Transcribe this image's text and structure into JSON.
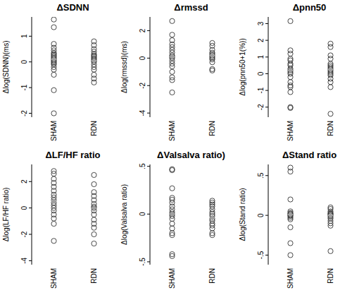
{
  "chart_data": [
    {
      "type": "scatter",
      "title": "ΔSDNN",
      "y_label": "Δlog(SDNN)(ms)",
      "categories": [
        "SHAM",
        "RDN"
      ],
      "values": [
        [
          1.65,
          1.35,
          0.7,
          0.55,
          0.45,
          0.35,
          0.3,
          0.25,
          0.2,
          0.15,
          0.1,
          0.05,
          0,
          -0.05,
          -0.1,
          -0.2,
          -0.3,
          -0.5,
          -1.1,
          -2.0
        ],
        [
          0.8,
          0.65,
          0.5,
          0.4,
          0.3,
          0.25,
          0.2,
          0.15,
          0.1,
          0.05,
          0,
          -0.1,
          -0.2,
          -0.3,
          -0.5,
          -0.65,
          -0.8
        ]
      ],
      "medians": [
        0.1,
        0.05
      ],
      "ylim": [
        -2.15,
        1.75
      ],
      "yticks": [
        -2,
        -1,
        0,
        1
      ],
      "grid": false,
      "marker": "circle",
      "color": "#333333"
    },
    {
      "type": "scatter",
      "title": "Δrmssd",
      "y_label": "Δlog(rmssd)(ms)",
      "categories": [
        "SHAM",
        "RDN"
      ],
      "values": [
        [
          2.7,
          1.7,
          1.3,
          1.0,
          0.8,
          0.6,
          0.4,
          0.2,
          0.1,
          0,
          -0.2,
          -0.4,
          -0.6,
          -1.0,
          -1.4,
          -1.6,
          -2.5
        ],
        [
          1.1,
          0.9,
          0.6,
          0.4,
          0.3,
          0.2,
          0.1,
          0,
          -0.1,
          -0.3,
          -0.8,
          -0.9
        ]
      ],
      "medians": [
        0.1,
        0.2
      ],
      "ylim": [
        -4.3,
        3.0
      ],
      "yticks": [
        -4,
        -2,
        0,
        2
      ],
      "grid": false,
      "marker": "circle",
      "color": "#333333"
    },
    {
      "type": "scatter",
      "title": "Δpnn50",
      "y_label": "Δlog(pnn50+1(%))",
      "categories": [
        "SHAM",
        "RDN"
      ],
      "values": [
        [
          3.15,
          1.4,
          1.2,
          0.9,
          0.8,
          0.6,
          0.5,
          0.3,
          0.2,
          0.1,
          0,
          -0.2,
          -0.5,
          -0.7,
          -0.8,
          -1.1,
          -2.0,
          -2.05
        ],
        [
          1.8,
          1.6,
          1.1,
          0.9,
          0.6,
          0.5,
          0.4,
          0.3,
          0.2,
          0.1,
          0,
          -0.1,
          -0.3,
          -0.5,
          -0.8,
          -2.4
        ]
      ],
      "medians": [
        0.2,
        0.25
      ],
      "ylim": [
        -2.6,
        3.4
      ],
      "yticks": [
        -2,
        -1,
        0,
        1,
        2,
        3
      ],
      "grid": false,
      "marker": "circle",
      "color": "#333333"
    },
    {
      "type": "scatter",
      "title": "ΔLF/HF ratio",
      "y_label": "Δlog(LF/HF ratio)",
      "categories": [
        "SHAM",
        "RDN"
      ],
      "values": [
        [
          2.8,
          2.6,
          2.2,
          1.9,
          1.6,
          1.3,
          1.0,
          0.8,
          0.6,
          0.4,
          0.2,
          0,
          -0.2,
          -0.5,
          -0.8,
          -1.2,
          -2.5
        ],
        [
          2.5,
          1.8,
          1.2,
          0.9,
          0.6,
          0.3,
          0.1,
          0,
          -0.2,
          -0.5,
          -0.9,
          -1.2,
          -1.5,
          -2.0,
          -2.7
        ]
      ],
      "medians": [
        0.5,
        0
      ],
      "ylim": [
        -4.3,
        3.3
      ],
      "yticks": [
        -4,
        -2,
        0,
        2
      ],
      "grid": false,
      "marker": "circle",
      "color": "#333333"
    },
    {
      "type": "scatter",
      "title": "ΔValsalva ratio)",
      "y_label": "Δlog(Valsalva ratio)",
      "categories": [
        "SHAM",
        "RDN"
      ],
      "values": [
        [
          0.47,
          0.46,
          0.27,
          0.17,
          0.15,
          0.12,
          0.08,
          0.05,
          0.02,
          0,
          -0.02,
          -0.05,
          -0.1,
          -0.15,
          -0.2,
          -0.22,
          -0.42,
          -0.44
        ],
        [
          0.14,
          0.12,
          0.1,
          0.08,
          0.05,
          0.02,
          0,
          -0.02,
          -0.05,
          -0.07,
          -0.1,
          -0.12,
          -0.15,
          -0.2,
          -0.22
        ]
      ],
      "medians": [
        0,
        -0.04
      ],
      "ylim": [
        -0.53,
        0.52
      ],
      "yticks": [
        {
          "value": -0.5,
          "label": "-.5"
        },
        0,
        {
          "value": 0.5,
          "label": ".5"
        }
      ],
      "grid": false,
      "marker": "circle",
      "color": "#333333"
    },
    {
      "type": "scatter",
      "title": "ΔStand ratio",
      "y_label": "Δlog(Stand ratio)",
      "categories": [
        "SHAM",
        "RDN"
      ],
      "values": [
        [
          0.6,
          0.55,
          0.2,
          0.05,
          0.03,
          0.02,
          0.01,
          0,
          -0.01,
          -0.03,
          -0.05,
          -0.15,
          -0.35,
          -0.5
        ],
        [
          0.1,
          0.08,
          0.05,
          0.03,
          0.02,
          0.01,
          0,
          -0.02,
          -0.04,
          -0.07,
          -0.1,
          -0.13,
          -0.45
        ]
      ],
      "medians": [
        0.01,
        0
      ],
      "ylim": [
        -0.62,
        0.64
      ],
      "yticks": [
        {
          "value": -0.5,
          "label": "-.5"
        },
        0,
        {
          "value": 0.5,
          "label": ".5"
        }
      ],
      "grid": false,
      "marker": "circle",
      "color": "#333333"
    }
  ]
}
